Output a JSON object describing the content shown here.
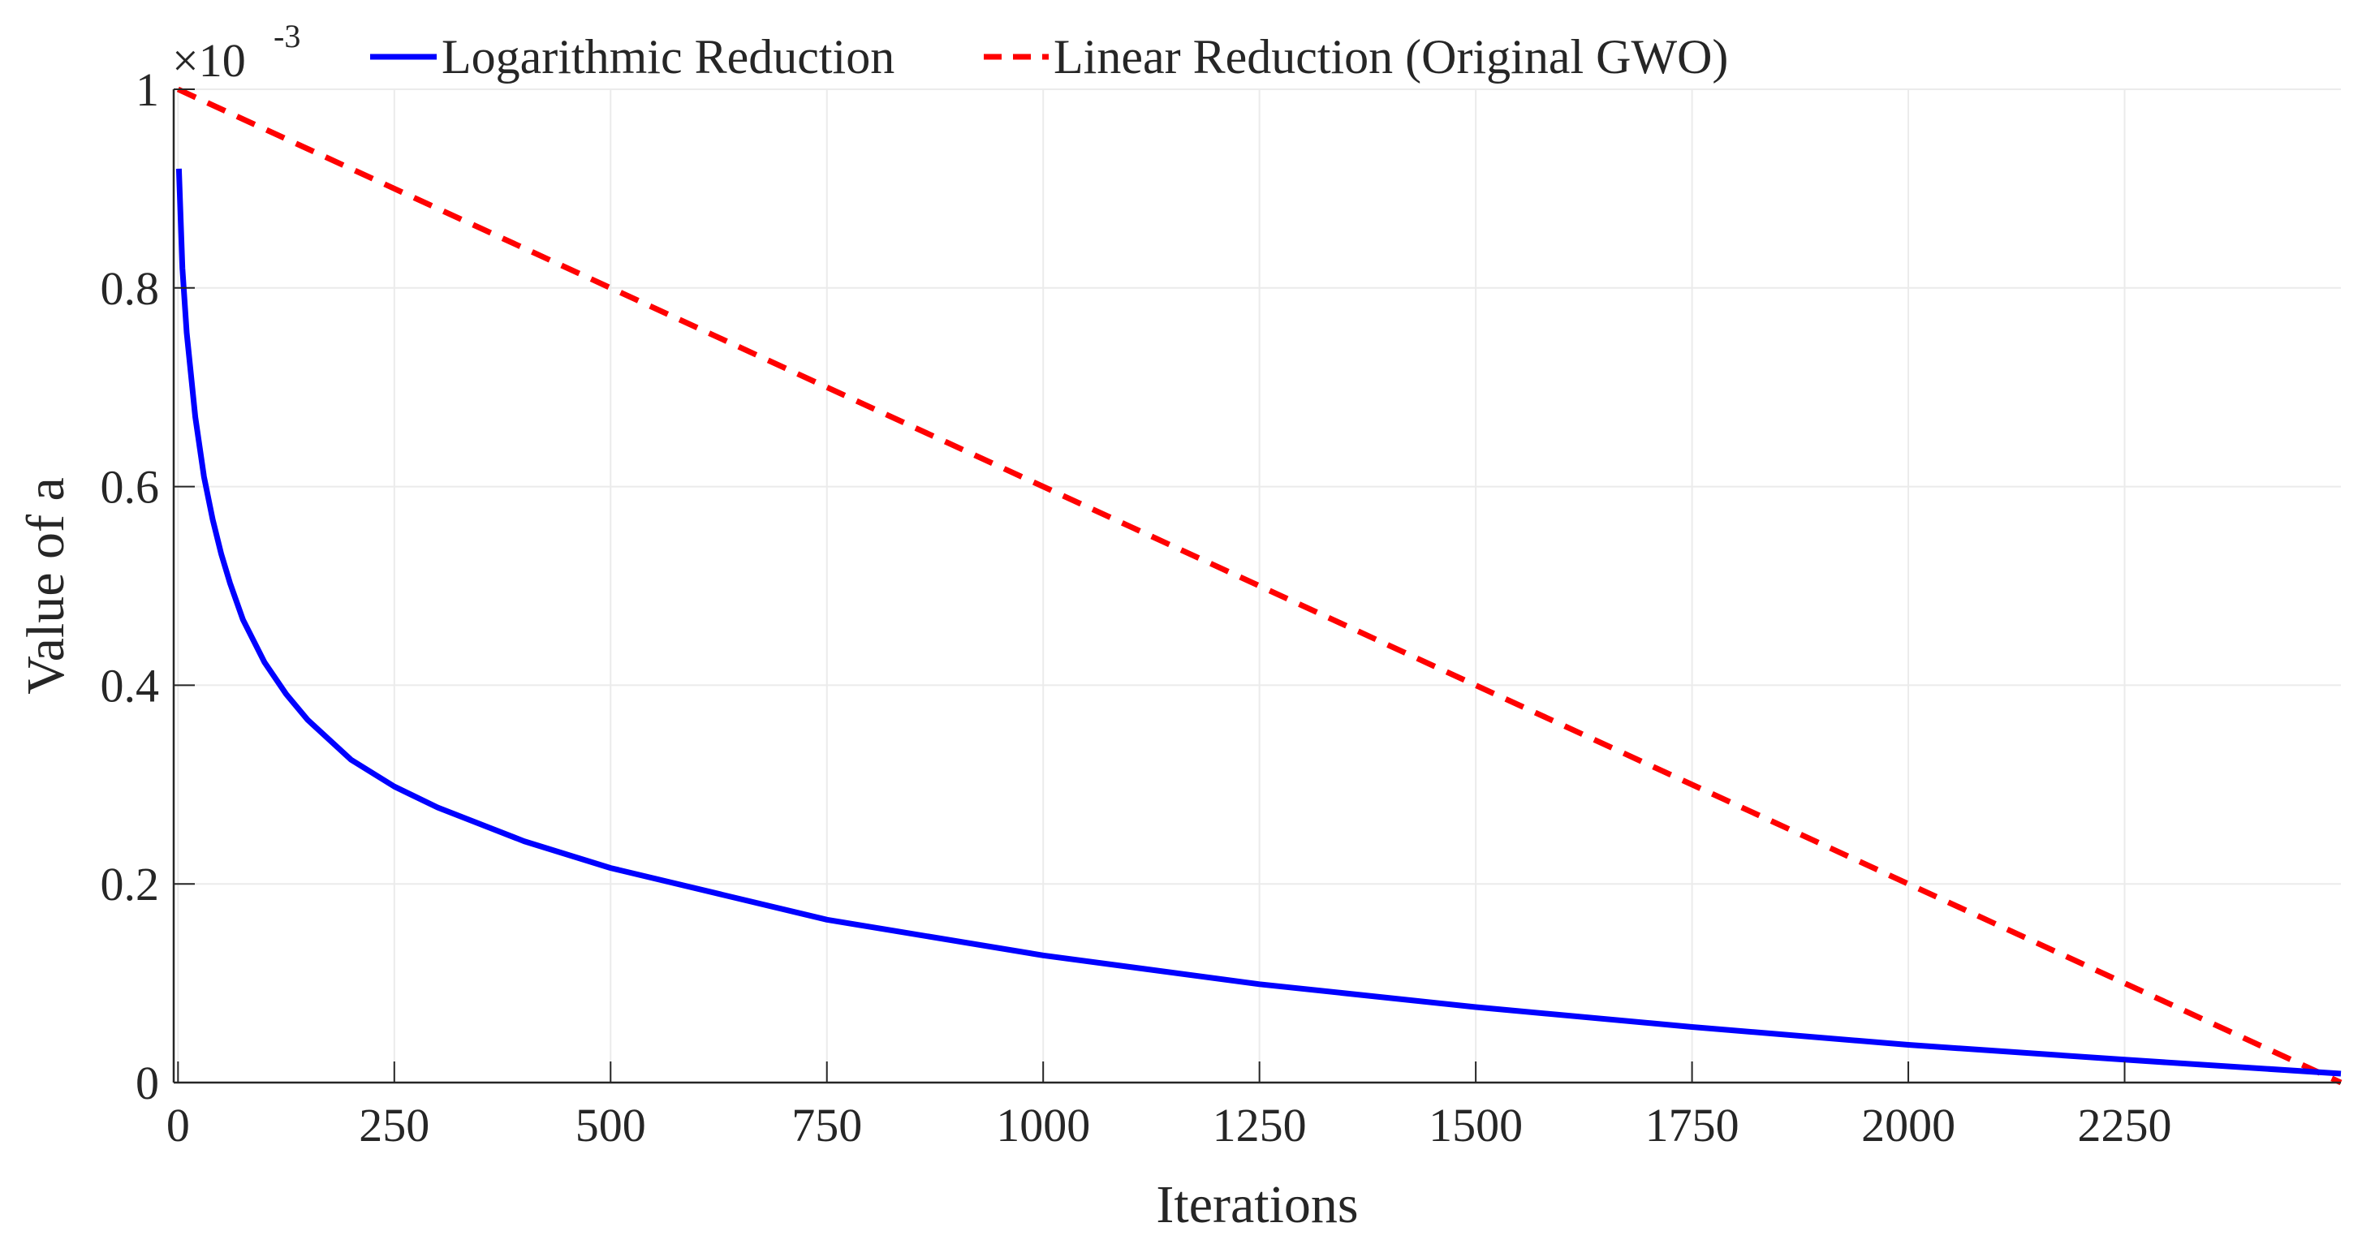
{
  "chart_data": {
    "type": "line",
    "title": "",
    "xlabel": "Iterations",
    "ylabel": "Value of a",
    "xlim": [
      -5,
      2500
    ],
    "ylim": [
      0,
      1
    ],
    "y_exponent_label": "×10",
    "y_exponent_power": "-3",
    "grid": true,
    "legend_location": "top",
    "x_ticks": [
      0,
      250,
      500,
      750,
      1000,
      1250,
      1500,
      1750,
      2000,
      2250
    ],
    "x_tick_labels": [
      "0",
      "250",
      "500",
      "750",
      "1000",
      "1250",
      "1500",
      "1750",
      "2000",
      "2250"
    ],
    "y_ticks": [
      0,
      0.2,
      0.4,
      0.6,
      0.8,
      1
    ],
    "y_tick_labels": [
      "0",
      "0.2",
      "0.4",
      "0.6",
      "0.8",
      "1"
    ],
    "series": [
      {
        "name": "Logarithmic Reduction",
        "color": "#0000ff",
        "style": "solid",
        "x": [
          1,
          5,
          10,
          20,
          30,
          40,
          50,
          60,
          75,
          100,
          125,
          150,
          200,
          250,
          300,
          400,
          500,
          750,
          1000,
          1250,
          1500,
          1750,
          2000,
          2250,
          2500
        ],
        "y": [
          0.92,
          0.82,
          0.755,
          0.67,
          0.61,
          0.567,
          0.532,
          0.503,
          0.466,
          0.423,
          0.391,
          0.365,
          0.325,
          0.298,
          0.277,
          0.243,
          0.216,
          0.164,
          0.128,
          0.099,
          0.076,
          0.056,
          0.038,
          0.023,
          0.009
        ]
      },
      {
        "name": "Linear Reduction (Original GWO)",
        "color": "#ff0000",
        "style": "dashed",
        "x": [
          0,
          2500
        ],
        "y": [
          1.0,
          0.0
        ]
      }
    ]
  }
}
